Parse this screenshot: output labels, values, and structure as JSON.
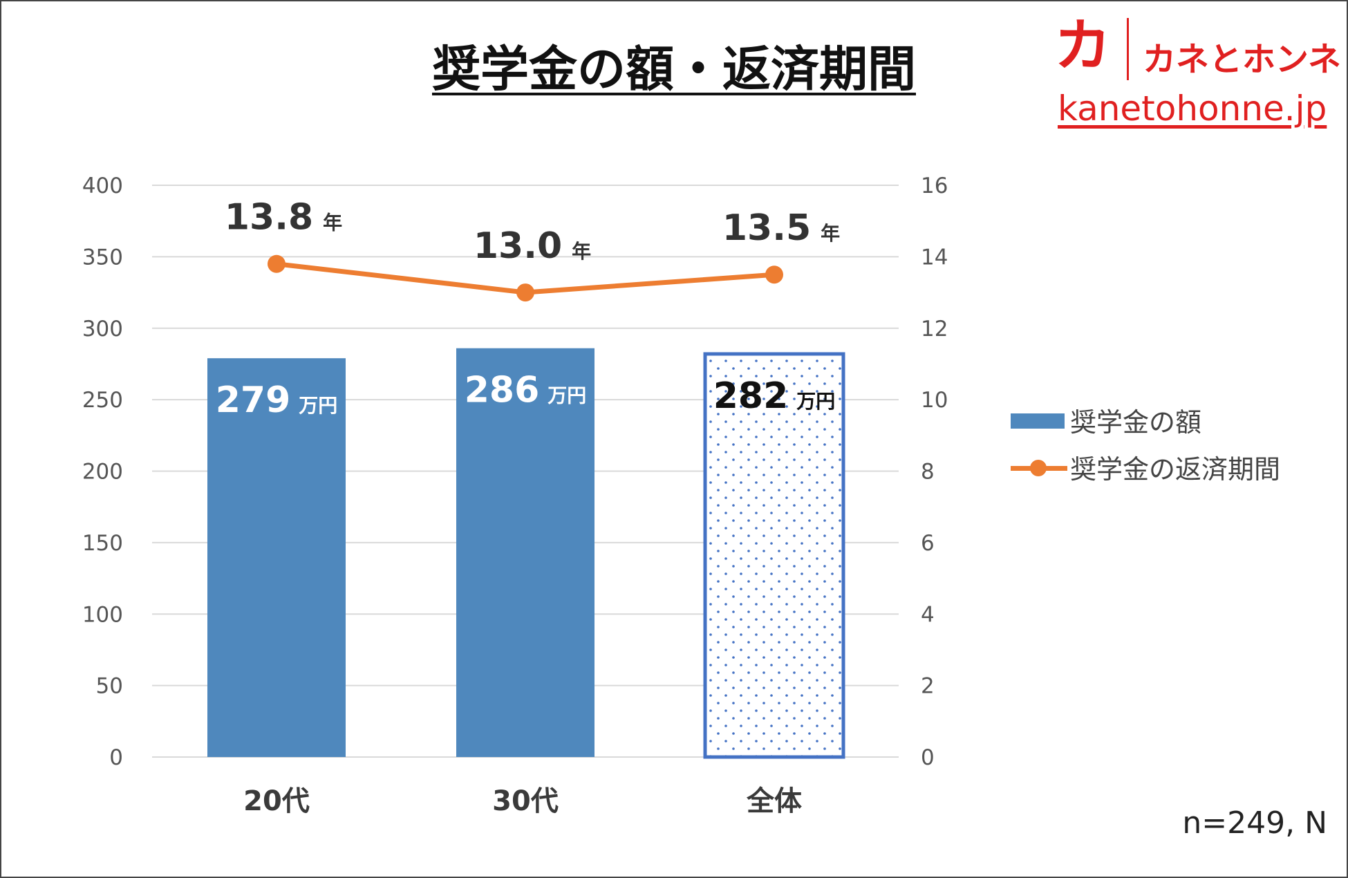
{
  "title": "奨学金の額・返済期間",
  "brand": {
    "mark": "カ",
    "name": "カネとホンネ",
    "url": "kanetohonne.jp",
    "color": "#e02020"
  },
  "sample_note": "n=249, N",
  "colors": {
    "bar": "#4f88bd",
    "highlight_border": "#4472c4",
    "line": "#ed7d31",
    "grid": "#d9d9d9"
  },
  "chart_data": {
    "type": "bar",
    "categories": [
      "20代",
      "30代",
      "全体"
    ],
    "series": [
      {
        "name": "奨学金の額",
        "type": "bar",
        "axis": "left",
        "values": [
          279,
          286,
          282
        ],
        "unit": "万円",
        "patterned": [
          false,
          false,
          true
        ]
      },
      {
        "name": "奨学金の返済期間",
        "type": "line",
        "axis": "right",
        "values": [
          13.8,
          13.0,
          13.5
        ],
        "value_labels": [
          "13.8",
          "13.0",
          "13.5"
        ],
        "unit": "年"
      }
    ],
    "y_left": {
      "min": 0,
      "max": 400,
      "ticks": [
        0,
        50,
        100,
        150,
        200,
        250,
        300,
        350,
        400
      ]
    },
    "y_right": {
      "min": 0,
      "max": 16,
      "ticks": [
        0,
        2,
        4,
        6,
        8,
        10,
        12,
        14,
        16
      ]
    },
    "grid": true,
    "legend_position": "right"
  }
}
